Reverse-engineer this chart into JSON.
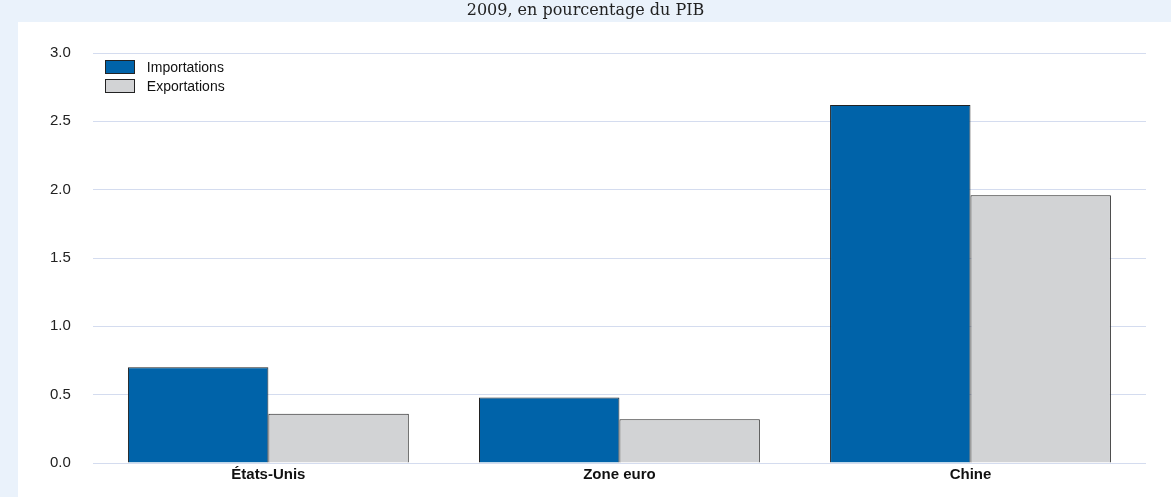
{
  "chart_data": {
    "type": "bar",
    "subtitle": "2009, en pourcentage du PIB",
    "categories": [
      "États-Unis",
      "Zone euro",
      "Chine"
    ],
    "series": [
      {
        "name": "Importations",
        "color": "#0063a9",
        "values": [
          0.7,
          0.48,
          2.62
        ]
      },
      {
        "name": "Exportations",
        "color": "#d2d3d5",
        "values": [
          0.36,
          0.32,
          1.96
        ]
      }
    ],
    "ylim": [
      0,
      3
    ],
    "yticks": [
      {
        "value": 0,
        "label": "0.0"
      },
      {
        "value": 0.5,
        "label": "0.5"
      },
      {
        "value": 1,
        "label": "1.0"
      },
      {
        "value": 1.5,
        "label": "1.5"
      },
      {
        "value": 2,
        "label": "2.0"
      },
      {
        "value": 2.5,
        "label": "2.5"
      },
      {
        "value": 3,
        "label": "3.0"
      }
    ],
    "grid": "y",
    "legend": "top left"
  }
}
